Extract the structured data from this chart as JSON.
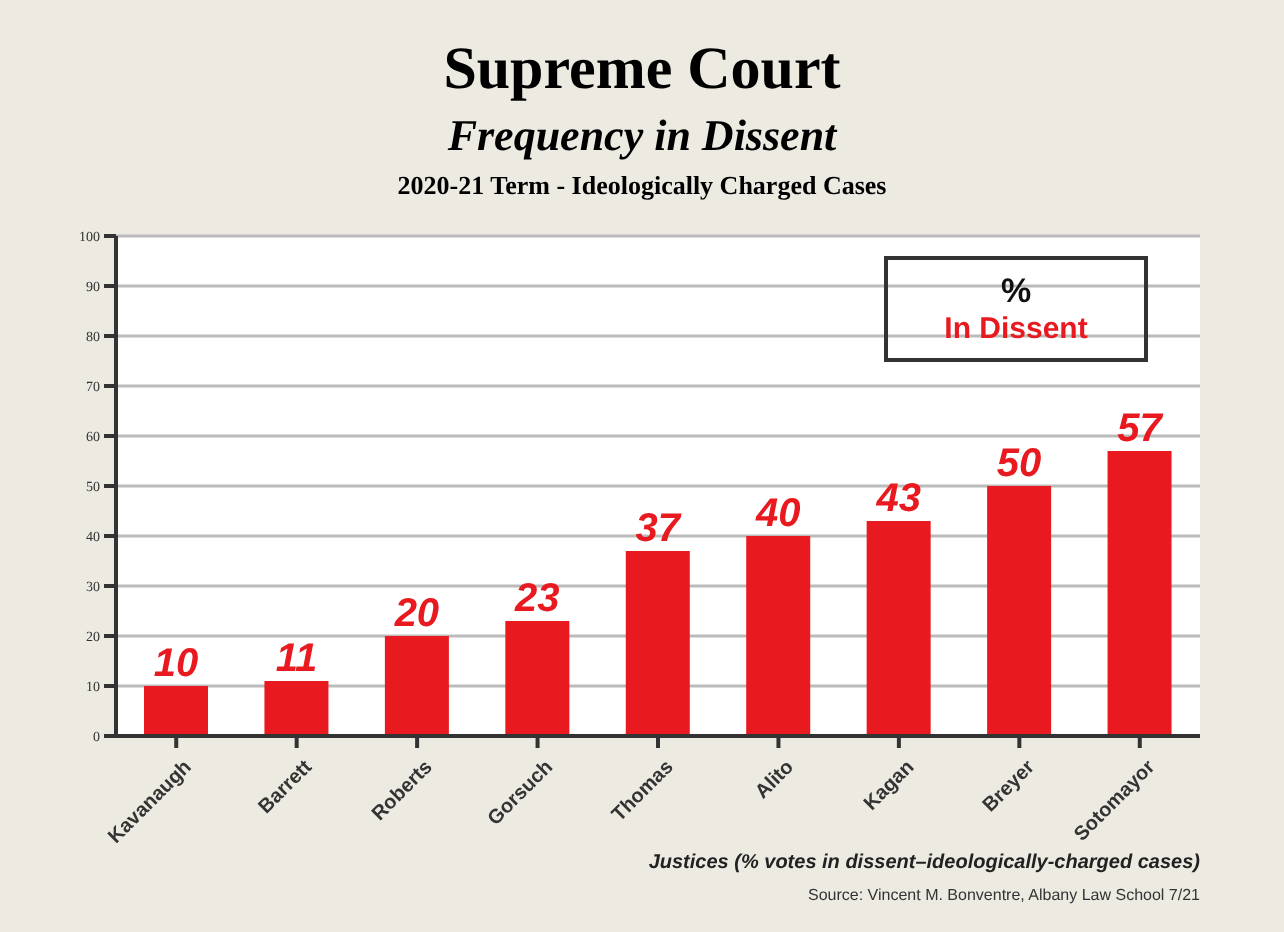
{
  "chart_data": {
    "type": "bar",
    "title": "Supreme Court",
    "subtitle": "Frequency in Dissent",
    "annotations": [
      "2020-21 Term - Ideologically Charged Cases",
      "Source: Vincent M. Bonventre, Albany Law School 7/21"
    ],
    "xlabel": "Justices (% votes in dissent–ideologically-charged cases)",
    "legend_title": "%",
    "legend": "top right",
    "categories": [
      "Kavanaugh",
      "Barrett",
      "Roberts",
      "Gorsuch",
      "Thomas",
      "Alito",
      "Kagan",
      "Breyer",
      "Sotomayor"
    ],
    "series": [
      {
        "name": "In Dissent",
        "color": "#e8191f",
        "values": [
          10,
          11,
          20,
          23,
          37,
          40,
          43,
          50,
          57
        ]
      }
    ],
    "ylim": [
      0,
      100
    ],
    "yticks": [
      0,
      10,
      20,
      30,
      40,
      50,
      60,
      70,
      80,
      90,
      100
    ],
    "grid": "y",
    "data_labels": true
  }
}
